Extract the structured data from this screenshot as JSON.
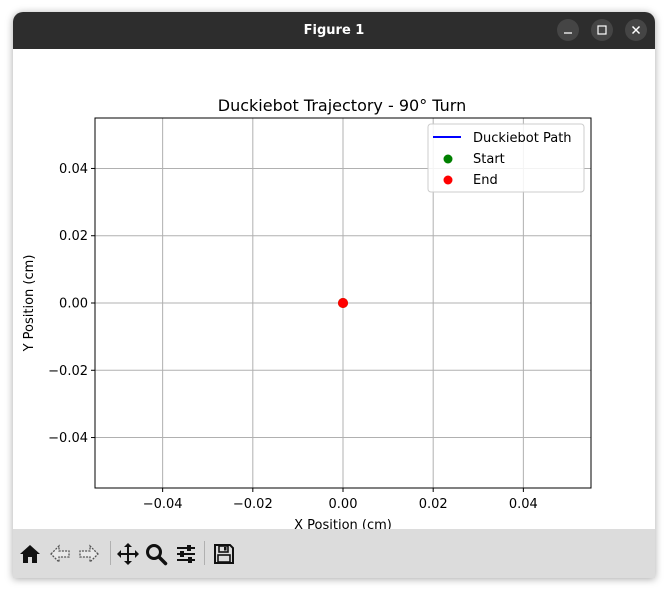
{
  "window": {
    "title": "Figure 1"
  },
  "toolbar": {
    "icons": [
      "home-icon",
      "back-arrow-icon",
      "forward-arrow-icon",
      "pan-icon",
      "zoom-icon",
      "configure-subplots-icon",
      "save-icon"
    ]
  },
  "colors": {
    "path": "#0000ff",
    "start": "#008000",
    "end": "#ff0000",
    "grid": "#b0b0b0",
    "titlebar": "#2d2d2d",
    "toolbar": "#dcdcdc"
  },
  "chart_data": {
    "type": "line",
    "title": "Duckiebot Trajectory - 90° Turn",
    "xlabel": "X Position (cm)",
    "ylabel": "Y Position (cm)",
    "xlim": [
      -0.055,
      0.055
    ],
    "ylim": [
      -0.055,
      0.055
    ],
    "xticks": [
      -0.04,
      -0.02,
      0.0,
      0.02,
      0.04
    ],
    "yticks": [
      -0.04,
      -0.02,
      0.0,
      0.02,
      0.04
    ],
    "xtick_labels": [
      "−0.04",
      "−0.02",
      "0.00",
      "0.02",
      "0.04"
    ],
    "ytick_labels": [
      "−0.04",
      "−0.02",
      "0.00",
      "0.02",
      "0.04"
    ],
    "grid": true,
    "legend_position": "top-right",
    "series": [
      {
        "name": "Duckiebot Path",
        "kind": "line",
        "color": "#0000ff",
        "x": [
          0.0
        ],
        "y": [
          0.0
        ]
      },
      {
        "name": "Start",
        "kind": "point",
        "color": "#008000",
        "x": [
          0.0
        ],
        "y": [
          0.0
        ]
      },
      {
        "name": "End",
        "kind": "point",
        "color": "#ff0000",
        "x": [
          0.0
        ],
        "y": [
          0.0
        ]
      }
    ]
  }
}
